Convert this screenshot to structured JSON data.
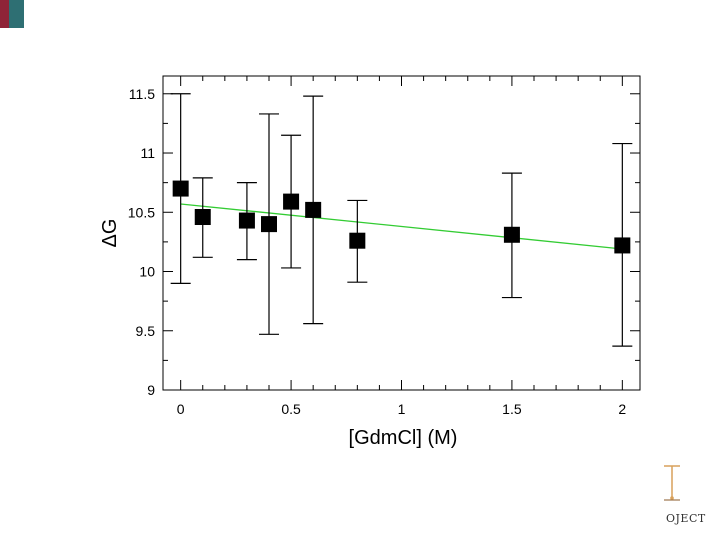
{
  "colors": {
    "corner_red": "#8f2438",
    "corner_teal": "#2e6f73",
    "fit_line": "#33cc33",
    "marker": "#000000"
  },
  "logo": {
    "text": "OJECT"
  },
  "chart_data": {
    "type": "scatter",
    "xlabel": "[GdmCl] (M)",
    "ylabel": "ΔG",
    "xlim": [
      -0.08,
      2.08
    ],
    "ylim": [
      9,
      11.65
    ],
    "x_ticks": [
      {
        "value": 0,
        "label": "0"
      },
      {
        "value": 0.5,
        "label": "0.5"
      },
      {
        "value": 1,
        "label": "1"
      },
      {
        "value": 1.5,
        "label": "1.5"
      },
      {
        "value": 2,
        "label": "2"
      }
    ],
    "x_minor_step": 0.1,
    "y_ticks": [
      {
        "value": 9,
        "label": "9"
      },
      {
        "value": 9.5,
        "label": "9.5"
      },
      {
        "value": 10,
        "label": "10"
      },
      {
        "value": 10.5,
        "label": "10.5"
      },
      {
        "value": 11,
        "label": "11"
      },
      {
        "value": 11.5,
        "label": "11.5"
      }
    ],
    "y_minor_step": 0.25,
    "grid": false,
    "points": [
      {
        "x": 0,
        "y": 10.7,
        "err_low": 9.9,
        "err_high": 11.5
      },
      {
        "x": 0.1,
        "y": 10.46,
        "err_low": 10.12,
        "err_high": 10.79
      },
      {
        "x": 0.3,
        "y": 10.43,
        "err_low": 10.1,
        "err_high": 10.75
      },
      {
        "x": 0.4,
        "y": 10.4,
        "err_low": 9.47,
        "err_high": 11.33
      },
      {
        "x": 0.5,
        "y": 10.59,
        "err_low": 10.03,
        "err_high": 11.15
      },
      {
        "x": 0.6,
        "y": 10.52,
        "err_low": 9.56,
        "err_high": 11.48
      },
      {
        "x": 0.8,
        "y": 10.26,
        "err_low": 9.91,
        "err_high": 10.6
      },
      {
        "x": 1.5,
        "y": 10.31,
        "err_low": 9.78,
        "err_high": 10.83
      },
      {
        "x": 2,
        "y": 10.22,
        "err_low": 9.37,
        "err_high": 11.08
      }
    ],
    "fit_line": {
      "x": [
        0,
        2
      ],
      "y": [
        10.57,
        10.19
      ]
    }
  }
}
